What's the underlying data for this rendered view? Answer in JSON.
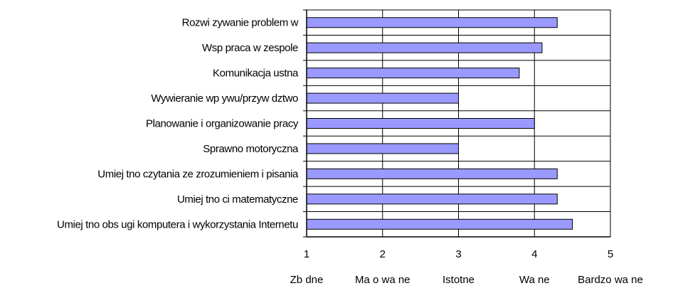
{
  "chart_data": {
    "type": "bar",
    "orientation": "horizontal",
    "categories": [
      "Rozwi zywanie problem w",
      "Wsp praca w zespole",
      "Komunikacja ustna",
      "Wywieranie wp ywu/przyw dztwo",
      "Planowanie i organizowanie pracy",
      "Sprawno motoryczna",
      "Umiej tno czytania ze zrozumieniem i pisania",
      "Umiej tno ci matematyczne",
      "Umiej tno obs ugi komputera i wykorzystania Internetu"
    ],
    "values": [
      4.3,
      4.1,
      3.8,
      3.0,
      4.0,
      3.0,
      4.3,
      4.3,
      4.5
    ],
    "xlim": [
      1,
      5
    ],
    "x_ticks": [
      "1",
      "2",
      "3",
      "4",
      "5"
    ],
    "scale_labels": [
      "Zb dne",
      "Ma o wa ne",
      "Istotne",
      "Wa ne",
      "Bardzo wa ne"
    ],
    "grid": true,
    "colors": {
      "bar_fill": "#9999FF",
      "bar_stroke": "#000000",
      "grid": "#000000"
    }
  }
}
